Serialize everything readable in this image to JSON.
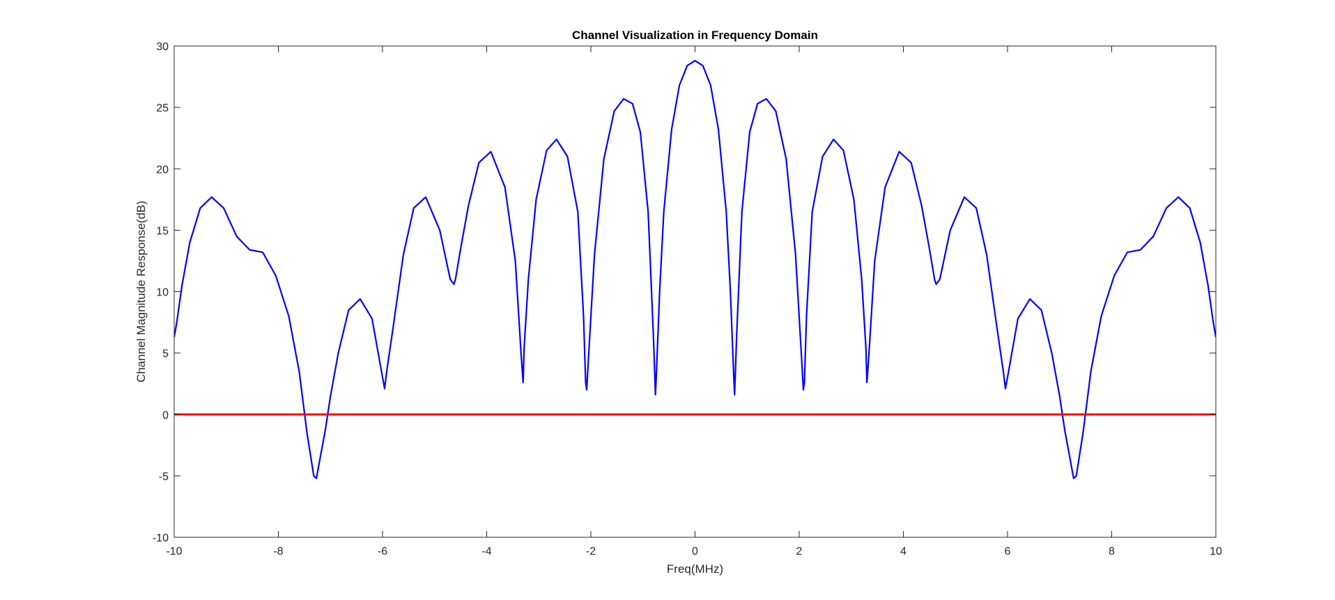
{
  "chart_data": {
    "type": "line",
    "title": "Channel Visualization in Frequency Domain",
    "xlabel": "Freq(MHz)",
    "ylabel": "Channel Magnitude Response(dB)",
    "xlim": [
      -10,
      10
    ],
    "ylim": [
      -10,
      30
    ],
    "xticks": [
      -10,
      -8,
      -6,
      -4,
      -2,
      0,
      2,
      4,
      6,
      8,
      10
    ],
    "yticks": [
      -10,
      -5,
      0,
      5,
      10,
      15,
      20,
      25,
      30
    ],
    "grid": false,
    "series": [
      {
        "color": "#0000FF",
        "x": [
          0,
          0.15,
          0.3,
          0.45,
          0.6,
          0.68,
          0.74,
          0.76,
          0.8,
          0.9,
          1.05,
          1.2,
          1.37,
          1.55,
          1.75,
          1.93,
          2.04,
          2.08,
          2.1,
          2.14,
          2.25,
          2.45,
          2.66,
          2.85,
          3.05,
          3.2,
          3.28,
          3.3,
          3.34,
          3.45,
          3.65,
          3.92,
          4.15,
          4.35,
          4.5,
          4.6,
          4.63,
          4.7,
          4.9,
          5.17,
          5.4,
          5.6,
          5.8,
          5.92,
          5.96,
          6.02,
          6.2,
          6.43,
          6.65,
          6.85,
          7.0,
          7.1,
          7.2,
          7.27,
          7.32,
          7.45,
          7.6,
          7.8,
          8.05,
          8.3,
          8.55,
          8.8,
          9.05,
          9.28,
          9.5,
          9.7,
          9.85,
          9.95,
          10.0
        ],
        "y": [
          28.8,
          28.4,
          26.8,
          23.2,
          16.5,
          10.0,
          3.5,
          1.6,
          6.5,
          16.5,
          23.0,
          25.3,
          25.7,
          24.7,
          20.8,
          13.0,
          5.0,
          2.0,
          2.6,
          8.0,
          16.5,
          21.0,
          22.4,
          21.5,
          17.5,
          11.0,
          5.5,
          2.6,
          5.0,
          12.5,
          18.5,
          21.4,
          20.5,
          17.0,
          13.5,
          11.0,
          10.6,
          11.0,
          15.0,
          17.7,
          16.8,
          13.0,
          7.0,
          3.5,
          2.1,
          3.5,
          7.8,
          9.4,
          8.5,
          5.0,
          1.5,
          -1.3,
          -3.6,
          -5.2,
          -5.0,
          -1.5,
          3.5,
          8.0,
          11.3,
          13.2,
          13.4,
          14.5,
          16.8,
          17.7,
          16.8,
          14.0,
          10.5,
          7.5,
          6.3
        ]
      },
      {
        "color": "#FF0000",
        "x": [
          -10,
          10
        ],
        "y": [
          0,
          0
        ]
      }
    ]
  }
}
